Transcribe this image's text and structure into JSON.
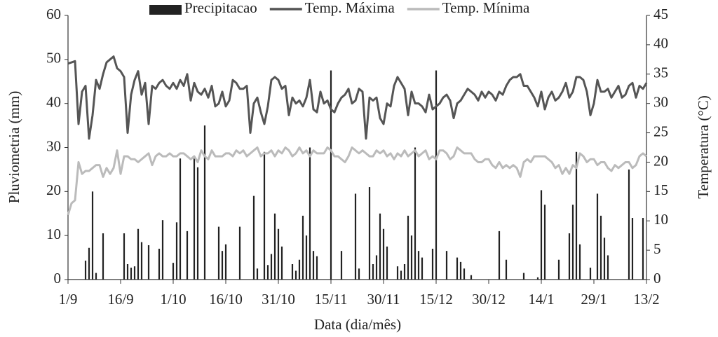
{
  "chart_data": {
    "type": "bar",
    "xlabel": "Data (dia/mês)",
    "ylabel": "Pluviometria (mm)",
    "y2label": "Temperatura (°C)",
    "ylim": [
      0,
      60
    ],
    "yticks": [
      0,
      10,
      20,
      30,
      40,
      50,
      60
    ],
    "y2lim": [
      0,
      45
    ],
    "y2ticks": [
      0,
      5,
      10,
      15,
      20,
      25,
      30,
      35,
      40,
      45
    ],
    "legend": "top",
    "categories": [
      "1/9",
      null,
      null,
      null,
      null,
      null,
      null,
      null,
      null,
      null,
      null,
      null,
      null,
      null,
      null,
      "16/9",
      null,
      null,
      null,
      null,
      null,
      null,
      null,
      null,
      null,
      null,
      null,
      null,
      null,
      null,
      "1/10",
      null,
      null,
      null,
      null,
      null,
      null,
      null,
      null,
      null,
      null,
      null,
      null,
      null,
      null,
      "16/10",
      null,
      null,
      null,
      null,
      null,
      null,
      null,
      null,
      null,
      null,
      null,
      null,
      null,
      null,
      "31/10",
      null,
      null,
      null,
      null,
      null,
      null,
      null,
      null,
      null,
      null,
      null,
      null,
      null,
      null,
      "15/11",
      null,
      null,
      null,
      null,
      null,
      null,
      null,
      null,
      null,
      null,
      null,
      null,
      null,
      null,
      "30/11",
      null,
      null,
      null,
      null,
      null,
      null,
      null,
      null,
      null,
      null,
      null,
      null,
      null,
      null,
      "15/12",
      null,
      null,
      null,
      null,
      null,
      null,
      null,
      null,
      null,
      null,
      null,
      null,
      null,
      null,
      "30/12",
      null,
      null,
      null,
      null,
      null,
      null,
      null,
      null,
      null,
      null,
      null,
      null,
      null,
      null,
      "14/1",
      null,
      null,
      null,
      null,
      null,
      null,
      null,
      null,
      null,
      null,
      null,
      null,
      null,
      null,
      "29/1",
      null,
      null,
      null,
      null,
      null,
      null,
      null,
      null,
      null,
      null,
      null,
      null,
      null,
      null,
      "13/2"
    ],
    "series": [
      {
        "name": "Precipitacao",
        "type": "bar",
        "color": "#222222",
        "values": [
          0,
          0,
          0,
          0,
          0,
          4.3,
          7.2,
          20,
          1.5,
          0,
          10.5,
          0,
          0,
          0,
          0,
          0,
          10.5,
          3.5,
          2.7,
          3,
          11.5,
          8.5,
          0,
          7.8,
          0,
          0,
          7,
          13.5,
          0,
          0,
          3.8,
          13,
          27.5,
          0,
          11,
          0,
          27.5,
          25.5,
          0,
          35,
          0,
          0,
          0,
          12,
          6.5,
          8,
          0,
          0,
          0,
          12,
          0,
          0,
          0,
          19,
          2.5,
          0,
          29,
          3.3,
          5.8,
          15,
          11.5,
          7.5,
          0,
          0,
          3.5,
          2,
          4.5,
          14.5,
          10,
          30,
          6.5,
          5.3,
          0,
          0,
          0,
          47.5,
          0,
          0,
          6.5,
          0,
          0,
          0,
          19.5,
          2.5,
          0,
          0,
          21,
          3.5,
          5.5,
          15,
          11.5,
          7.5,
          0,
          0,
          3,
          2,
          3.5,
          14.5,
          10,
          30,
          6.5,
          5,
          0,
          0,
          7,
          47.5,
          0,
          0,
          6.5,
          0,
          0,
          5,
          4,
          2.5,
          0,
          1,
          0,
          0,
          0,
          0,
          0,
          0,
          0,
          11,
          0,
          4.5,
          0,
          0,
          0,
          0,
          1.5,
          0,
          0,
          0,
          0.5,
          20.3,
          17,
          0,
          0,
          0,
          4.5,
          0,
          0,
          10.5,
          17,
          29,
          8,
          0,
          0,
          2.7,
          0,
          19.5,
          14.5,
          9.5,
          5.5,
          0,
          0,
          0,
          0,
          0,
          25,
          14,
          0,
          0,
          14,
          0
        ]
      },
      {
        "name": "Temp. Máxima",
        "type": "line",
        "axis": "y2",
        "color": "#555555",
        "values": [
          36.8,
          37,
          37.2,
          26.5,
          32,
          33,
          24,
          28,
          34,
          32.5,
          35,
          37,
          37.5,
          38,
          36,
          35.5,
          34.5,
          25,
          31.5,
          34,
          35.5,
          31.5,
          33.5,
          26.5,
          33,
          32.5,
          33.5,
          34,
          33,
          32.5,
          33.5,
          32.5,
          34,
          33,
          35,
          30.5,
          33.5,
          32,
          31.5,
          32.5,
          31,
          33,
          29.5,
          30,
          32,
          29.5,
          30.5,
          34,
          33.5,
          32.5,
          32.5,
          33,
          25,
          30,
          31,
          28.5,
          26.5,
          29.5,
          34,
          34.5,
          34,
          32.5,
          33,
          28,
          31,
          30,
          30.5,
          29.5,
          31,
          34,
          29,
          28.5,
          32,
          30,
          30.5,
          29,
          28.5,
          30,
          31,
          31.5,
          32.5,
          30,
          30.5,
          32.5,
          32,
          24,
          31,
          30.5,
          31,
          27.5,
          26.5,
          30,
          29.5,
          33,
          34.5,
          33.5,
          32.5,
          28,
          32,
          30,
          30,
          29.5,
          28.5,
          31.5,
          29,
          29.5,
          30,
          31,
          31.5,
          30.5,
          27.5,
          30,
          30.5,
          31.5,
          32.5,
          32,
          31.5,
          30.5,
          32,
          31,
          32,
          31.5,
          30.5,
          32,
          31.5,
          33,
          34,
          34.5,
          34.5,
          35,
          33,
          33,
          32,
          31,
          29.5,
          32,
          29,
          31,
          32,
          30.5,
          31,
          32,
          33.5,
          31,
          32,
          34.5,
          34.5,
          34,
          32,
          28,
          30,
          34,
          32,
          32,
          32.5,
          31,
          32,
          33,
          31,
          31.5,
          33,
          33.5,
          31,
          33,
          32.5,
          33.5
        ]
      },
      {
        "name": "Temp. Mínima",
        "type": "line",
        "axis": "y2",
        "color": "#bbbbbb",
        "values": [
          11,
          13,
          13.5,
          20,
          18,
          18.5,
          18.5,
          19,
          19.5,
          19.5,
          17.5,
          19,
          18,
          19,
          22,
          18,
          21,
          21,
          20.5,
          20.5,
          20,
          20.5,
          21,
          21.5,
          19.5,
          21,
          21.5,
          21,
          21,
          21.5,
          21,
          21,
          21.5,
          21.5,
          21,
          20.5,
          21,
          20,
          22,
          21,
          20.5,
          22,
          21,
          21,
          21,
          21.5,
          21.5,
          21,
          22,
          21.5,
          22,
          21,
          21.5,
          22,
          22.5,
          21,
          21.5,
          21.5,
          22,
          21,
          22,
          21.5,
          22.5,
          22,
          21,
          21.5,
          22.5,
          21.5,
          22,
          21,
          22,
          21.5,
          21.5,
          21.5,
          22.5,
          22,
          21,
          21,
          20.5,
          20,
          21,
          22.5,
          22,
          21.5,
          22,
          21.5,
          21,
          21,
          22,
          21.5,
          22,
          21,
          21.5,
          20.5,
          21.5,
          21,
          22,
          21,
          21.5,
          22,
          21,
          21.5,
          22,
          20.5,
          21,
          20.5,
          22,
          22,
          21.5,
          20.5,
          21,
          22.5,
          22,
          21.5,
          21.5,
          21.5,
          20.5,
          20,
          20,
          20.5,
          20.5,
          19.5,
          19,
          20,
          19,
          19.5,
          19,
          19.5,
          19,
          17.5,
          20,
          20.5,
          20,
          21,
          21,
          21,
          21,
          20.5,
          20,
          19,
          19.5,
          18,
          19,
          18,
          19.5,
          19,
          21.5,
          21,
          20,
          20.5,
          20.5,
          19.5,
          20,
          20,
          19,
          18.5,
          19.5,
          19,
          19.5,
          20,
          20,
          19,
          19.5,
          21,
          21.5,
          21
        ]
      }
    ]
  }
}
